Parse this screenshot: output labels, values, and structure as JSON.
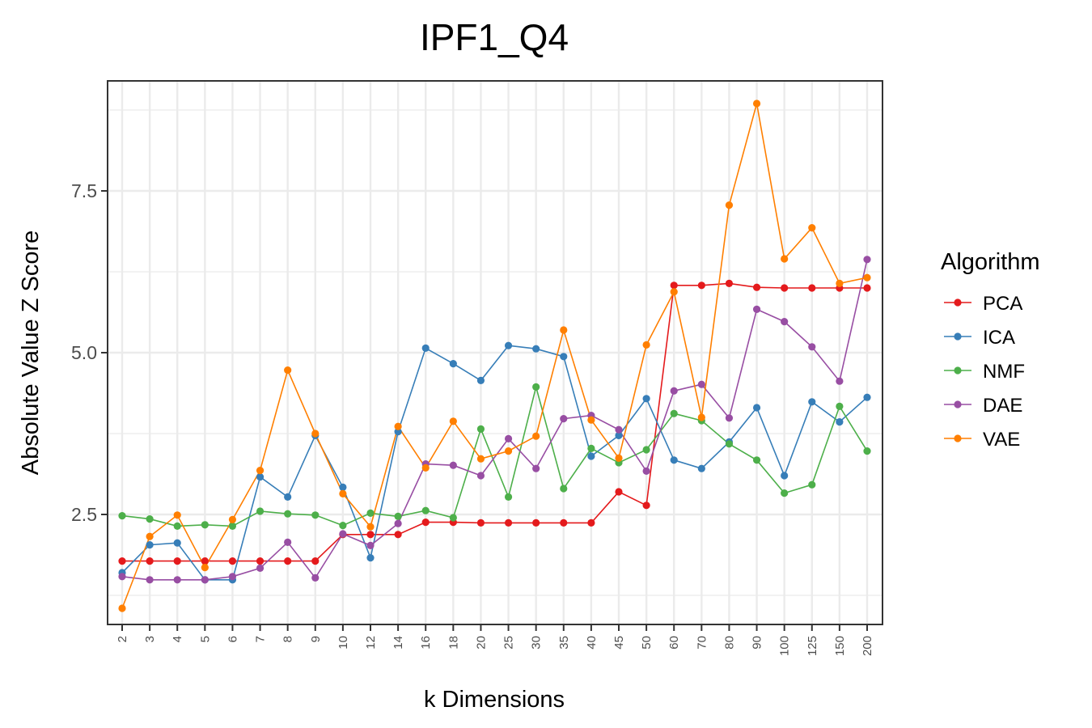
{
  "chart_data": {
    "type": "line",
    "title": "IPF1_Q4",
    "xlabel": "k Dimensions",
    "ylabel": "Absolute Value Z Score",
    "categories": [
      "2",
      "3",
      "4",
      "5",
      "6",
      "7",
      "8",
      "9",
      "10",
      "12",
      "14",
      "16",
      "18",
      "20",
      "25",
      "30",
      "35",
      "40",
      "45",
      "50",
      "60",
      "70",
      "80",
      "90",
      "100",
      "125",
      "150",
      "200"
    ],
    "yticks": [
      2.5,
      5.0,
      7.5
    ],
    "ytick_labels": [
      "2.5",
      "5.0",
      "7.5"
    ],
    "ylim": [
      0.8,
      9.2
    ],
    "grid": true,
    "legend": {
      "title": "Algorithm",
      "position": "right"
    },
    "series": [
      {
        "name": "PCA",
        "color": "#E41A1C",
        "values": [
          1.78,
          1.78,
          1.78,
          1.78,
          1.78,
          1.78,
          1.78,
          1.78,
          2.19,
          2.19,
          2.19,
          2.38,
          2.38,
          2.37,
          2.37,
          2.37,
          2.37,
          2.37,
          2.85,
          2.64,
          6.04,
          6.04,
          6.07,
          6.01,
          6.0,
          6.0,
          6.0,
          6.0
        ]
      },
      {
        "name": "ICA",
        "color": "#377EB8",
        "values": [
          1.6,
          2.03,
          2.06,
          1.49,
          1.49,
          3.08,
          2.77,
          3.72,
          2.92,
          1.83,
          3.78,
          5.07,
          4.83,
          4.57,
          5.11,
          5.06,
          4.94,
          3.4,
          3.72,
          4.29,
          3.34,
          3.21,
          3.62,
          4.15,
          3.1,
          4.24,
          3.93,
          4.31
        ]
      },
      {
        "name": "NMF",
        "color": "#4DAF4A",
        "values": [
          2.48,
          2.43,
          2.32,
          2.34,
          2.32,
          2.55,
          2.51,
          2.49,
          2.33,
          2.52,
          2.47,
          2.56,
          2.45,
          3.82,
          2.77,
          4.47,
          2.9,
          3.52,
          3.3,
          3.5,
          4.06,
          3.95,
          3.59,
          3.34,
          2.83,
          2.96,
          4.17,
          3.48
        ]
      },
      {
        "name": "DAE",
        "color": "#984EA3",
        "values": [
          1.54,
          1.49,
          1.49,
          1.49,
          1.54,
          1.67,
          2.07,
          1.52,
          2.2,
          2.02,
          2.36,
          3.28,
          3.26,
          3.1,
          3.67,
          3.21,
          3.98,
          4.03,
          3.81,
          3.17,
          4.41,
          4.51,
          3.99,
          5.67,
          5.48,
          5.09,
          4.56,
          6.44
        ]
      },
      {
        "name": "VAE",
        "color": "#FF7F00",
        "values": [
          1.05,
          2.16,
          2.49,
          1.68,
          2.42,
          3.18,
          4.73,
          3.75,
          2.82,
          2.31,
          3.86,
          3.22,
          3.94,
          3.36,
          3.48,
          3.71,
          5.35,
          3.96,
          3.37,
          5.12,
          5.94,
          4.0,
          7.28,
          8.85,
          6.45,
          6.93,
          6.07,
          6.16
        ]
      }
    ]
  }
}
